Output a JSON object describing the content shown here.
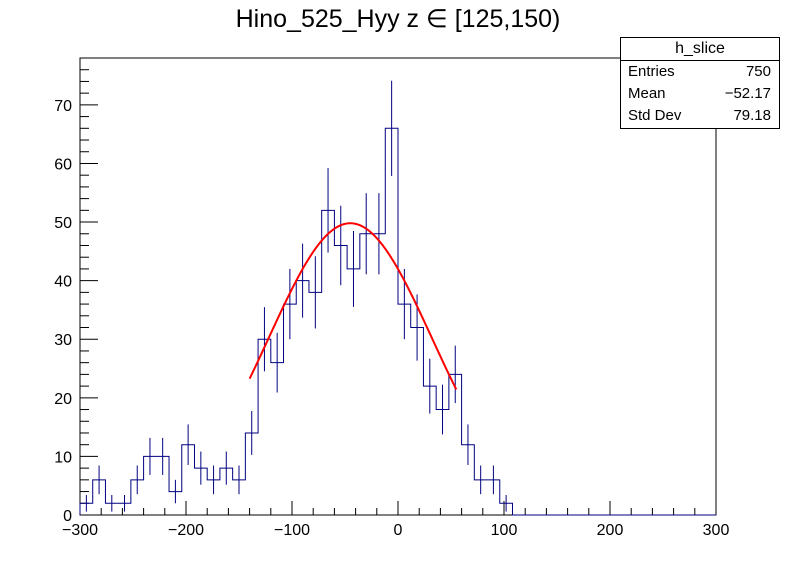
{
  "title": "Hino_525_Hyy z  ∈ [125,150)",
  "stats": {
    "name": "h_slice",
    "rows": [
      {
        "label": "Entries",
        "value": "750"
      },
      {
        "label": "Mean",
        "value": "−52.17"
      },
      {
        "label": "Std Dev",
        "value": "79.18"
      }
    ]
  },
  "colors": {
    "histogram": "#000080",
    "fit": "#ff0000",
    "axis": "#000000"
  },
  "chart_data": {
    "type": "histogram",
    "xlim": [
      -300,
      300
    ],
    "ylim": [
      0,
      78
    ],
    "xticks": [
      -300,
      -200,
      -100,
      0,
      100,
      200,
      300
    ],
    "yticks": [
      0,
      10,
      20,
      30,
      40,
      50,
      60,
      70
    ],
    "bin_width": 12,
    "bins_start": -300,
    "values": [
      2,
      6,
      2,
      2,
      6,
      10,
      10,
      4,
      12,
      8,
      6,
      8,
      6,
      14,
      30,
      26,
      36,
      40,
      38,
      52,
      46,
      42,
      48,
      48,
      66,
      36,
      32,
      22,
      18,
      24,
      12,
      6,
      6,
      2,
      0,
      0,
      0,
      0,
      0,
      0,
      0,
      0,
      0,
      0,
      0,
      0,
      0,
      0,
      0,
      0
    ],
    "fit": {
      "type": "gaus",
      "mean": -45,
      "sigma": 77,
      "amplitude": 49.8,
      "range": [
        -140,
        55
      ]
    }
  }
}
